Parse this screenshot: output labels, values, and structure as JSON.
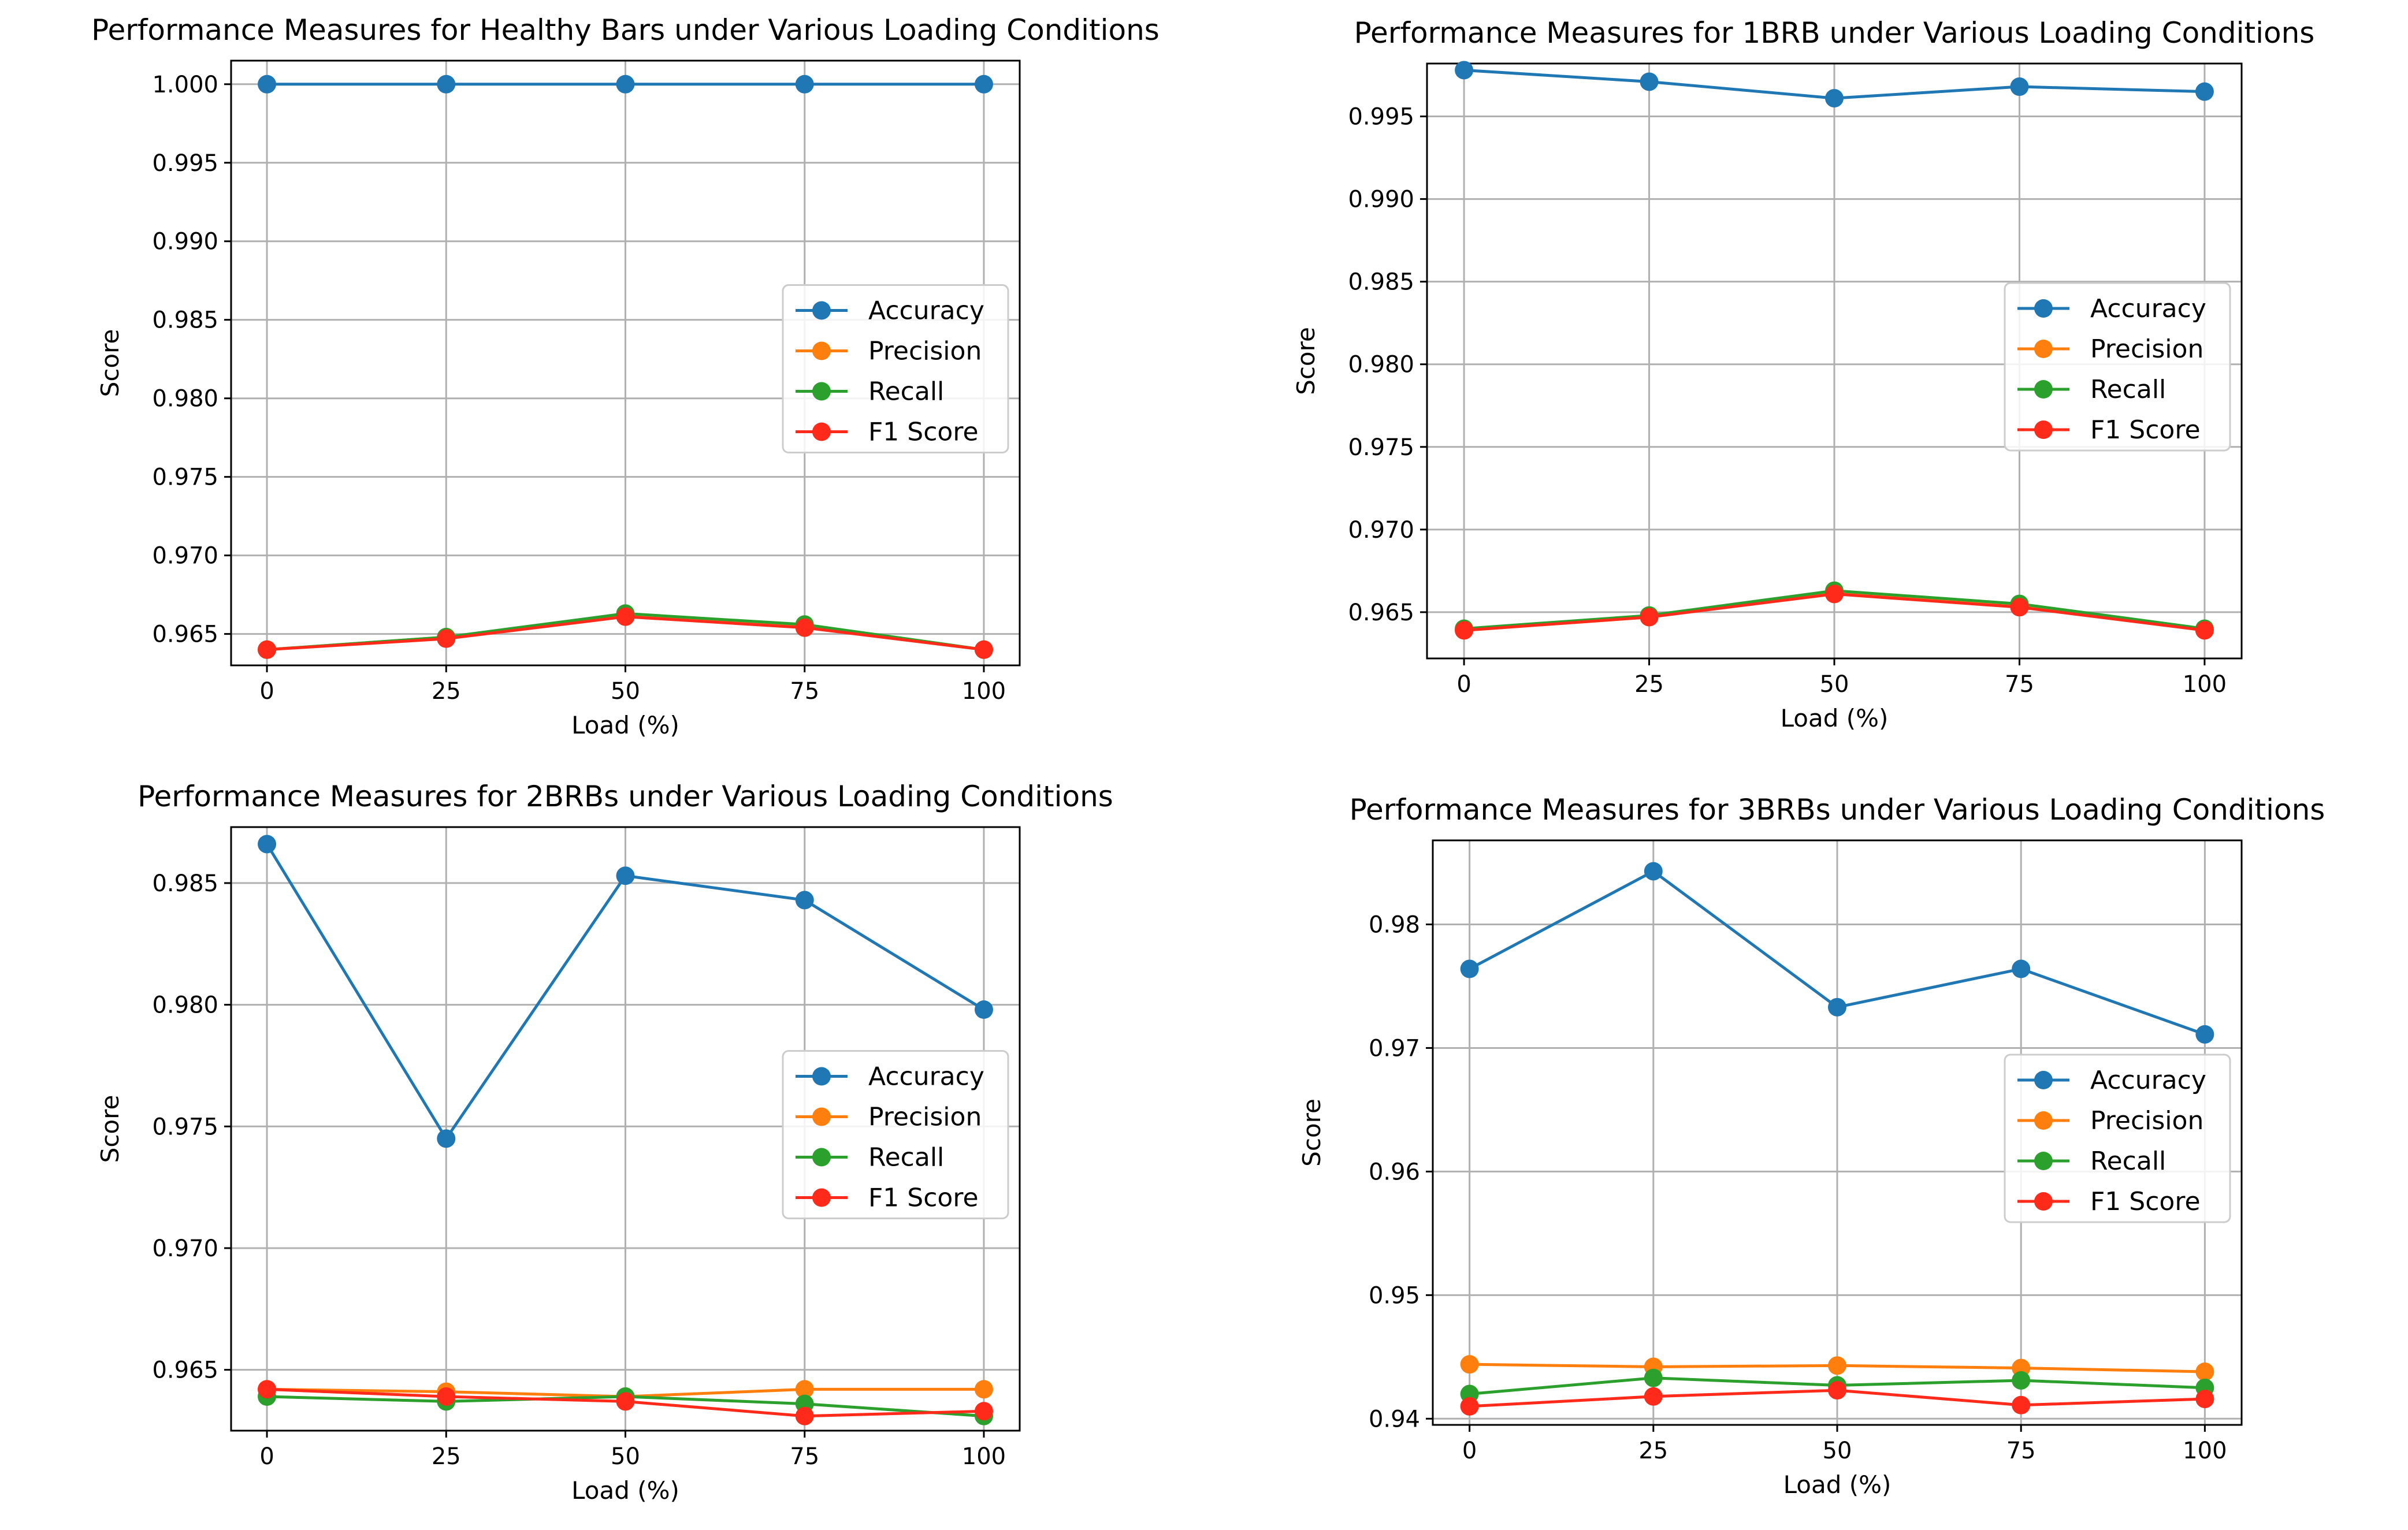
{
  "chart_data": [
    {
      "type": "line",
      "title": "Performance Measures for Healthy Bars under Various Loading Conditions",
      "xlabel": "Load (%)",
      "ylabel": "Score",
      "x": [
        0,
        25,
        50,
        75,
        100
      ],
      "xticks": [
        "0",
        "25",
        "50",
        "75",
        "100"
      ],
      "xlim": [
        -5,
        105
      ],
      "ylim": [
        0.963,
        1.0015
      ],
      "yticks": [
        "0.965",
        "0.970",
        "0.975",
        "0.980",
        "0.985",
        "0.990",
        "0.995",
        "1.000"
      ],
      "grid": true,
      "legend_position": "center-right",
      "series": [
        {
          "name": "Accuracy",
          "color": "#1f77b4",
          "values": [
            1.0,
            1.0,
            1.0,
            1.0,
            1.0
          ]
        },
        {
          "name": "Precision",
          "color": "#ff7f0e",
          "values": [
            0.964,
            0.9648,
            0.9662,
            0.9655,
            0.964
          ]
        },
        {
          "name": "Recall",
          "color": "#2ca02c",
          "values": [
            0.964,
            0.9648,
            0.9663,
            0.9656,
            0.964
          ]
        },
        {
          "name": "F1 Score",
          "color": "#ff2a1a",
          "values": [
            0.964,
            0.9647,
            0.9661,
            0.9654,
            0.964
          ]
        }
      ]
    },
    {
      "type": "line",
      "title": "Performance Measures for 1BRB under Various Loading Conditions",
      "xlabel": "Load (%)",
      "ylabel": "Score",
      "x": [
        0,
        25,
        50,
        75,
        100
      ],
      "xticks": [
        "0",
        "25",
        "50",
        "75",
        "100"
      ],
      "xlim": [
        -5,
        105
      ],
      "ylim": [
        0.9622,
        0.9982
      ],
      "yticks": [
        "0.965",
        "0.970",
        "0.975",
        "0.980",
        "0.985",
        "0.990",
        "0.995"
      ],
      "grid": true,
      "legend_position": "center-right",
      "series": [
        {
          "name": "Accuracy",
          "color": "#1f77b4",
          "values": [
            0.9978,
            0.9971,
            0.9961,
            0.9968,
            0.9965
          ]
        },
        {
          "name": "Precision",
          "color": "#ff7f0e",
          "values": [
            0.9639,
            0.9647,
            0.9662,
            0.9654,
            0.9639
          ]
        },
        {
          "name": "Recall",
          "color": "#2ca02c",
          "values": [
            0.964,
            0.9648,
            0.9663,
            0.9655,
            0.964
          ]
        },
        {
          "name": "F1 Score",
          "color": "#ff2a1a",
          "values": [
            0.9639,
            0.9647,
            0.9661,
            0.9653,
            0.9639
          ]
        }
      ]
    },
    {
      "type": "line",
      "title": "Performance Measures for 2BRBs under Various Loading Conditions",
      "xlabel": "Load (%)",
      "ylabel": "Score",
      "x": [
        0,
        25,
        50,
        75,
        100
      ],
      "xticks": [
        "0",
        "25",
        "50",
        "75",
        "100"
      ],
      "xlim": [
        -5,
        105
      ],
      "ylim": [
        0.9625,
        0.9873
      ],
      "yticks": [
        "0.965",
        "0.970",
        "0.975",
        "0.980",
        "0.985"
      ],
      "grid": true,
      "legend_position": "center-right",
      "series": [
        {
          "name": "Accuracy",
          "color": "#1f77b4",
          "values": [
            0.9866,
            0.9745,
            0.9853,
            0.9843,
            0.9798
          ]
        },
        {
          "name": "Precision",
          "color": "#ff7f0e",
          "values": [
            0.9642,
            0.9641,
            0.9639,
            0.9642,
            0.9642
          ]
        },
        {
          "name": "Recall",
          "color": "#2ca02c",
          "values": [
            0.9639,
            0.9637,
            0.9639,
            0.9636,
            0.9631
          ]
        },
        {
          "name": "F1 Score",
          "color": "#ff2a1a",
          "values": [
            0.9642,
            0.9639,
            0.9637,
            0.9631,
            0.9633
          ]
        }
      ]
    },
    {
      "type": "line",
      "title": "Performance Measures for 3BRBs under Various Loading Conditions",
      "xlabel": "Load (%)",
      "ylabel": "Score",
      "x": [
        0,
        25,
        50,
        75,
        100
      ],
      "xticks": [
        "0",
        "25",
        "50",
        "75",
        "100"
      ],
      "xlim": [
        -5,
        105
      ],
      "ylim": [
        0.9395,
        0.9868
      ],
      "yticks": [
        "0.94",
        "0.95",
        "0.96",
        "0.97",
        "0.98"
      ],
      "grid": true,
      "legend_position": "center-right",
      "series": [
        {
          "name": "Accuracy",
          "color": "#1f77b4",
          "values": [
            0.9764,
            0.9843,
            0.9733,
            0.9764,
            0.9711
          ]
        },
        {
          "name": "Precision",
          "color": "#ff7f0e",
          "values": [
            0.9444,
            0.9442,
            0.9443,
            0.9441,
            0.9438
          ]
        },
        {
          "name": "Recall",
          "color": "#2ca02c",
          "values": [
            0.942,
            0.9433,
            0.9427,
            0.9431,
            0.9425
          ]
        },
        {
          "name": "F1 Score",
          "color": "#ff2a1a",
          "values": [
            0.941,
            0.9418,
            0.9423,
            0.9411,
            0.9416
          ]
        }
      ]
    }
  ]
}
